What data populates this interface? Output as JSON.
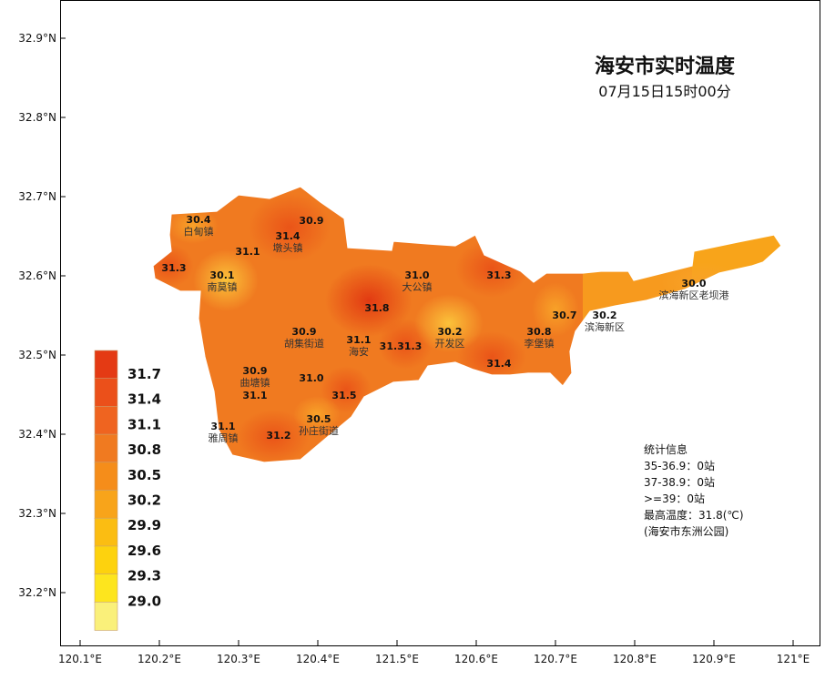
{
  "title": "海安市实时温度",
  "subtitle": "07月15日15时00分",
  "colors": {
    "base": "#f07a20",
    "frame": "#000000"
  },
  "y_ticks": [
    "32.9°N",
    "32.8°N",
    "32.7°N",
    "32.6°N",
    "32.5°N",
    "32.4°N",
    "32.3°N",
    "32.2°N"
  ],
  "x_ticks": [
    "120.1°E",
    "120.2°E",
    "120.3°E",
    "120.4°E",
    "121.5°E",
    "120.6°E",
    "120.7°E",
    "120.8°E",
    "120.9°E",
    "121°E"
  ],
  "legend": {
    "labels": [
      "31.7",
      "31.4",
      "31.1",
      "30.8",
      "30.5",
      "30.2",
      "29.9",
      "29.6",
      "29.3",
      "29.0"
    ],
    "colors": [
      "#e43a14",
      "#eb501a",
      "#ef6420",
      "#f07a20",
      "#f58d1a",
      "#f8a41a",
      "#fbbd12",
      "#fdd20e",
      "#fde51e",
      "#faf07a"
    ]
  },
  "stations": [
    {
      "value": "30.4",
      "place": "白甸镇"
    },
    {
      "value": "31.3",
      "place": ""
    },
    {
      "value": "30.9",
      "place": ""
    },
    {
      "value": "31.4",
      "place": "墩头镇"
    },
    {
      "value": "31.1",
      "place": ""
    },
    {
      "value": "30.1",
      "place": "南莫镇"
    },
    {
      "value": "31.0",
      "place": "大公镇"
    },
    {
      "value": "31.3",
      "place": ""
    },
    {
      "value": "31.8",
      "place": ""
    },
    {
      "value": "30.9",
      "place": "胡集街道"
    },
    {
      "value": "31.1",
      "place": "海安"
    },
    {
      "value": "31.31.3",
      "place": ""
    },
    {
      "value": "30.2",
      "place": "开发区"
    },
    {
      "value": "30.8",
      "place": "李堡镇"
    },
    {
      "value": "30.7",
      "place": ""
    },
    {
      "value": "30.2",
      "place": "滨海新区"
    },
    {
      "value": "30.0",
      "place": "滨海新区老坝港"
    },
    {
      "value": "31.4",
      "place": ""
    },
    {
      "value": "30.9",
      "place": "曲塘镇"
    },
    {
      "value": "31.1",
      "place": ""
    },
    {
      "value": "31.0",
      "place": ""
    },
    {
      "value": "31.5",
      "place": ""
    },
    {
      "value": "30.5",
      "place": "孙庄街道"
    },
    {
      "value": "31.1",
      "place": "雅周镇"
    },
    {
      "value": "31.2",
      "place": ""
    }
  ],
  "stats": {
    "heading": "统计信息",
    "lines": [
      "35-36.9：0站",
      "37-38.9：0站",
      ">=39：0站",
      "最高温度：31.8(℃)",
      "(海安市东洲公园)"
    ]
  }
}
